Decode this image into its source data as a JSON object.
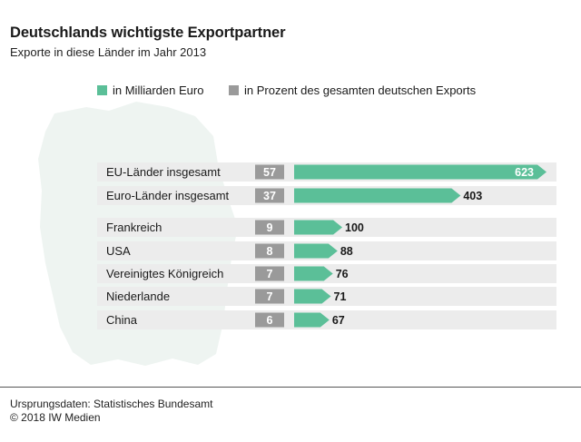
{
  "title": "Deutschlands wichtigste Exportpartner",
  "subtitle": "Exporte in diese Länder im Jahr 2013",
  "legend": {
    "euro_label": "in Milliarden Euro",
    "percent_label": "in Prozent des gesamten deutschen Exports"
  },
  "colors": {
    "euro": "#5bbf98",
    "percent": "#9a9a9a",
    "row_bg": "#ececec",
    "map": "#eef4f1"
  },
  "chart_data": {
    "type": "bar",
    "categories": [
      "EU-Länder insgesamt",
      "Euro-Länder insgesamt",
      "Frankreich",
      "USA",
      "Vereinigtes Königreich",
      "Niederlande",
      "China"
    ],
    "series": [
      {
        "name": "in Milliarden Euro",
        "values": [
          623,
          403,
          100,
          88,
          76,
          71,
          67
        ]
      },
      {
        "name": "in Prozent des gesamten deutschen Exports",
        "values": [
          57,
          37,
          9,
          8,
          7,
          7,
          6
        ]
      }
    ],
    "title": "Deutschlands wichtigste Exportpartner",
    "subtitle": "Exporte in diese Länder im Jahr 2013",
    "orientation": "horizontal",
    "grid": false,
    "legend_position": "top"
  },
  "footer": {
    "source": "Ursprungsdaten: Statistisches Bundesamt",
    "copyright": "© 2018 IW Medien"
  }
}
